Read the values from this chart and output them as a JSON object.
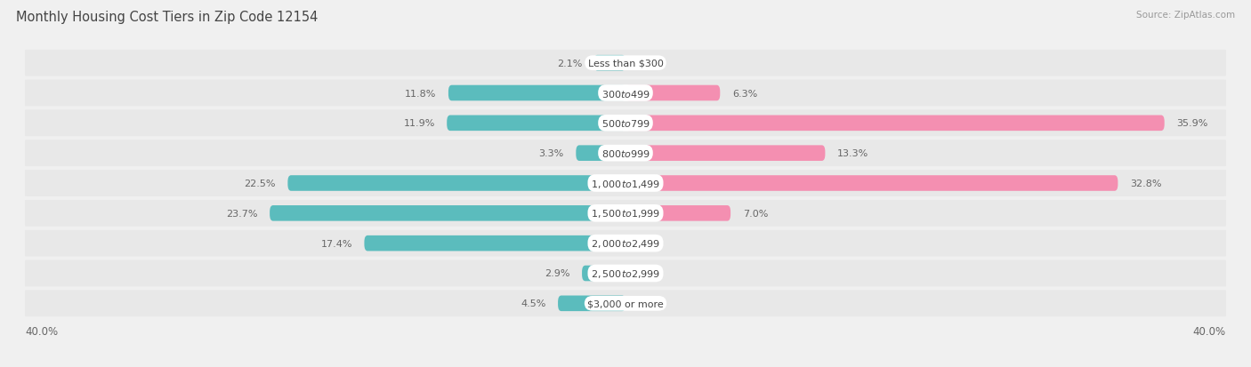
{
  "title": "Monthly Housing Cost Tiers in Zip Code 12154",
  "source": "Source: ZipAtlas.com",
  "categories": [
    "Less than $300",
    "$300 to $499",
    "$500 to $799",
    "$800 to $999",
    "$1,000 to $1,499",
    "$1,500 to $1,999",
    "$2,000 to $2,499",
    "$2,500 to $2,999",
    "$3,000 or more"
  ],
  "owner_values": [
    2.1,
    11.8,
    11.9,
    3.3,
    22.5,
    23.7,
    17.4,
    2.9,
    4.5
  ],
  "renter_values": [
    0.0,
    6.3,
    35.9,
    13.3,
    32.8,
    7.0,
    0.0,
    0.0,
    0.0
  ],
  "owner_color": "#5bbcbd",
  "renter_color": "#f48fb1",
  "axis_max": 40.0,
  "bg_color": "#f0f0f0",
  "row_bg_color": "#e8e8e8",
  "label_bg_color": "#ffffff",
  "title_color": "#555555",
  "value_color": "#666666",
  "title_fontsize": 10.5,
  "label_fontsize": 8.0,
  "category_fontsize": 8.0,
  "legend_fontsize": 9,
  "axis_label_fontsize": 8.5
}
